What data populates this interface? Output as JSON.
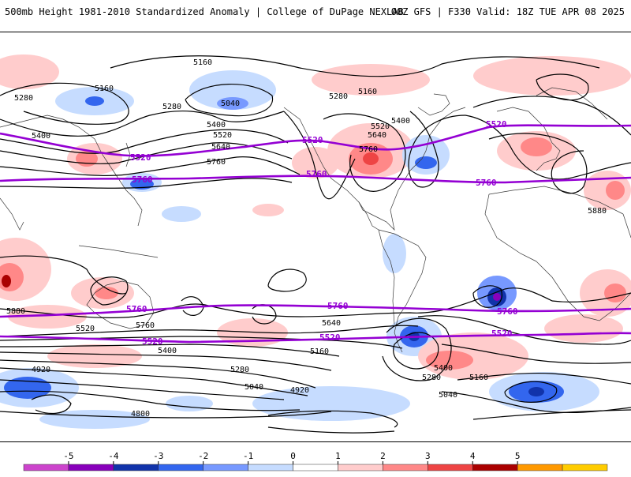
{
  "header": {
    "left_title": "500mb Height 1981-2010 Standardized Anomaly | College of DuPage NEXLAB",
    "right_title": "00Z GFS | F330 Valid: 18Z TUE APR 08 2025"
  },
  "map": {
    "black_contour_labels": [
      "5160",
      "5280",
      "5160",
      "5040",
      "5280",
      "5400",
      "5520",
      "5640",
      "5760",
      "5400",
      "5280",
      "5160",
      "5400",
      "5520",
      "5640",
      "5760",
      "5880",
      "5880",
      "5760",
      "5640",
      "5520",
      "5400",
      "5280",
      "5160",
      "5040",
      "4920",
      "4800",
      "4920",
      "5040",
      "5160",
      "5280",
      "5400"
    ],
    "purple_contour_labels": [
      "5520",
      "5760",
      "5520",
      "5760",
      "5760",
      "5520",
      "5760",
      "5520",
      "5520",
      "5760",
      "5760",
      "5520"
    ],
    "colors": {
      "black_contour": "#000000",
      "purple_contour": "#9400d3",
      "coast": "#3a3a3a"
    }
  },
  "colorbar": {
    "ticks": [
      "-5",
      "-4",
      "-3",
      "-2",
      "-1",
      "0",
      "1",
      "2",
      "3",
      "4",
      "5"
    ],
    "colors": [
      "#cc44cc",
      "#8800bb",
      "#1133aa",
      "#3366ee",
      "#7799ff",
      "#c6dcff",
      "#ffffff",
      "#ffcccc",
      "#ff8888",
      "#ee4444",
      "#aa0000",
      "#ff9900",
      "#ffcc00"
    ]
  }
}
